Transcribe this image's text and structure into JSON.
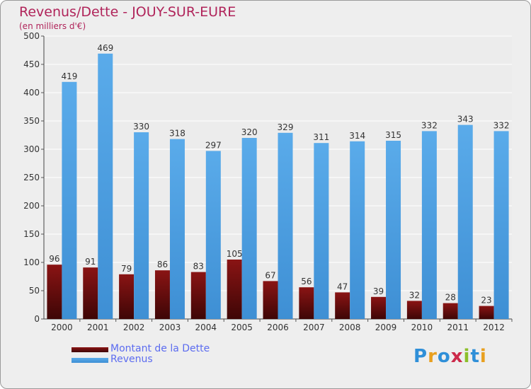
{
  "title": "Revenus/Dette - JOUY-SUR-EURE",
  "subtitle": "(en milliers d'€)",
  "logo": "Proxiti",
  "colors": {
    "dette": "#7a1010",
    "revenus": "#4a9fe0",
    "title": "#b0245a",
    "legend_text": "#5c6cf0"
  },
  "chart_data": {
    "type": "bar",
    "title": "Revenus/Dette - JOUY-SUR-EURE",
    "ylabel": "(en milliers d'€)",
    "xlabel": "",
    "categories": [
      "2000",
      "2001",
      "2002",
      "2003",
      "2004",
      "2005",
      "2006",
      "2007",
      "2008",
      "2009",
      "2010",
      "2011",
      "2012"
    ],
    "ylim": [
      0,
      500
    ],
    "yticks": [
      0,
      50,
      100,
      150,
      200,
      250,
      300,
      350,
      400,
      450,
      500
    ],
    "grid": true,
    "legend_position": "bottom-left",
    "series": [
      {
        "name": "Montant de la Dette",
        "values": [
          96,
          91,
          79,
          86,
          83,
          105,
          67,
          56,
          47,
          39,
          32,
          28,
          23
        ]
      },
      {
        "name": "Revenus",
        "values": [
          419,
          469,
          330,
          318,
          297,
          320,
          329,
          311,
          314,
          315,
          332,
          343,
          332
        ]
      }
    ]
  }
}
